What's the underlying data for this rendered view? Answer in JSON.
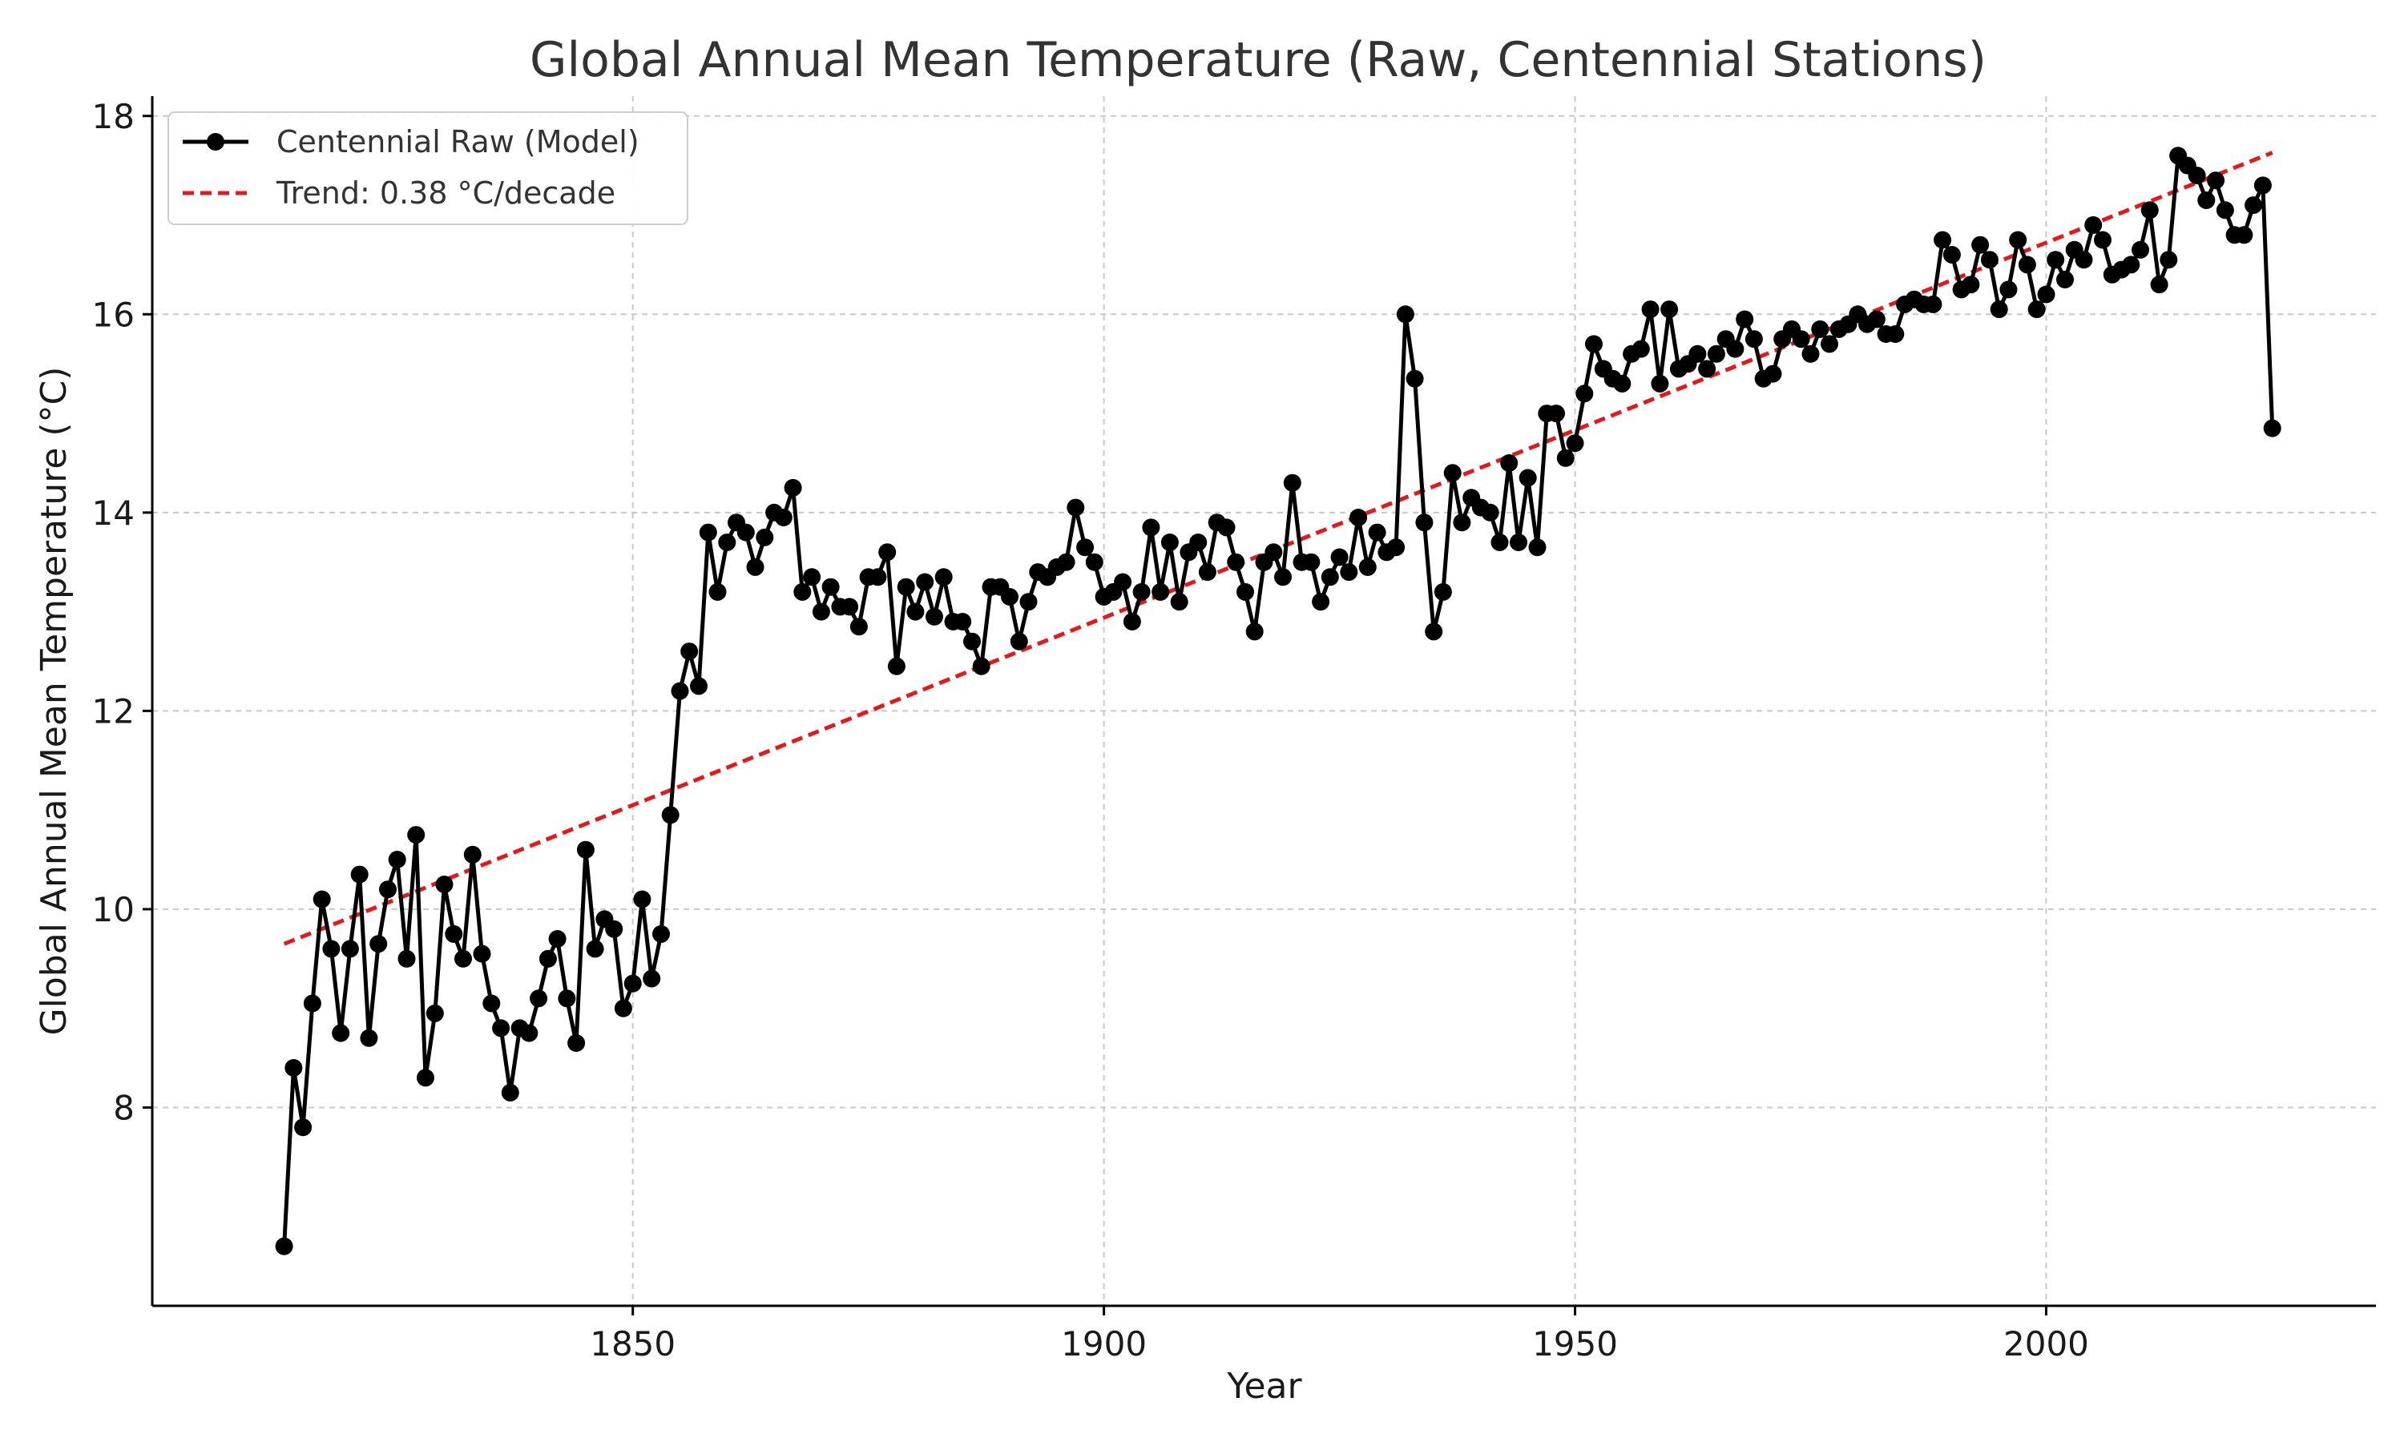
{
  "chart_data": {
    "type": "line",
    "title": "Global Annual Mean Temperature (Raw, Centennial Stations)",
    "xlabel": "Year",
    "ylabel": "Global Annual Mean Temperature (°C)",
    "xlim": [
      1799,
      2035
    ],
    "ylim": [
      6.0,
      18.2
    ],
    "xticks": [
      1850,
      1900,
      1950,
      2000
    ],
    "yticks": [
      8,
      10,
      12,
      14,
      16,
      18
    ],
    "grid": true,
    "legend_position": "top-left",
    "series": [
      {
        "name": "Centennial Raw (Model)",
        "color": "#000000",
        "marker": "circle",
        "x_start": 1813,
        "values": [
          6.6,
          8.4,
          7.8,
          9.05,
          10.1,
          9.6,
          8.75,
          9.6,
          10.35,
          8.7,
          9.65,
          10.2,
          10.5,
          9.5,
          10.75,
          8.3,
          8.95,
          10.25,
          9.75,
          9.5,
          10.55,
          9.55,
          9.05,
          8.8,
          8.15,
          8.8,
          8.75,
          9.1,
          9.5,
          9.7,
          9.1,
          8.65,
          10.6,
          9.6,
          9.9,
          9.8,
          9.0,
          9.25,
          10.1,
          9.3,
          9.75,
          10.95,
          12.2,
          12.6,
          12.25,
          13.8,
          13.2,
          13.7,
          13.9,
          13.8,
          13.45,
          13.75,
          14.0,
          13.95,
          14.25,
          13.2,
          13.35,
          13.0,
          13.25,
          13.05,
          13.05,
          12.85,
          13.35,
          13.35,
          13.6,
          12.45,
          13.25,
          13.0,
          13.3,
          12.95,
          13.35,
          12.9,
          12.9,
          12.7,
          12.45,
          13.25,
          13.25,
          13.15,
          12.7,
          13.1,
          13.4,
          13.35,
          13.45,
          13.5,
          14.05,
          13.65,
          13.5,
          13.15,
          13.2,
          13.3,
          12.9,
          13.2,
          13.85,
          13.2,
          13.7,
          13.1,
          13.6,
          13.7,
          13.4,
          13.9,
          13.85,
          13.5,
          13.2,
          12.8,
          13.5,
          13.6,
          13.35,
          14.3,
          13.5,
          13.5,
          13.1,
          13.35,
          13.55,
          13.4,
          13.95,
          13.45,
          13.8,
          13.6,
          13.65,
          16.0,
          15.35,
          13.9,
          12.8,
          13.2,
          14.4,
          13.9,
          14.15,
          14.05,
          14.0,
          13.7,
          14.5,
          13.7,
          14.35,
          13.65,
          15.0,
          15.0,
          14.55,
          14.7,
          15.2,
          15.7,
          15.45,
          15.35,
          15.3,
          15.6,
          15.65,
          16.05,
          15.3,
          16.05,
          15.45,
          15.5,
          15.6,
          15.45,
          15.6,
          15.75,
          15.65,
          15.95,
          15.75,
          15.35,
          15.4,
          15.75,
          15.85,
          15.75,
          15.6,
          15.85,
          15.7,
          15.85,
          15.9,
          16.0,
          15.9,
          15.95,
          15.8,
          15.8,
          16.1,
          16.15,
          16.1,
          16.1,
          16.75,
          16.6,
          16.25,
          16.3,
          16.7,
          16.55,
          16.05,
          16.25,
          16.75,
          16.5,
          16.05,
          16.2,
          16.55,
          16.35,
          16.65,
          16.55,
          16.9,
          16.75,
          16.4,
          16.45,
          16.5,
          16.65,
          17.05,
          16.3,
          16.55,
          17.6,
          17.5,
          17.4,
          17.15,
          17.35,
          17.05,
          16.8,
          16.8,
          17.1,
          17.3,
          14.85
        ]
      },
      {
        "name": "Trend: 0.38 °C/decade",
        "color": "#e31a1c",
        "style": "dashed",
        "x": [
          1813,
          2024
        ],
        "values": [
          9.65,
          17.63
        ]
      }
    ]
  }
}
